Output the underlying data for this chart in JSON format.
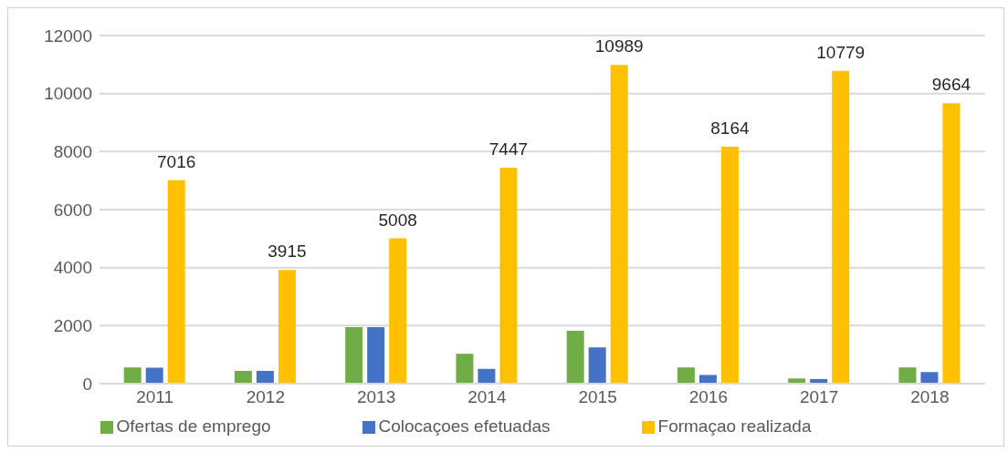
{
  "chart_data": {
    "type": "bar",
    "categories": [
      "2011",
      "2012",
      "2013",
      "2014",
      "2015",
      "2016",
      "2017",
      "2018"
    ],
    "series": [
      {
        "name": "Ofertas de emprego",
        "color": "#70ad47",
        "values": [
          560,
          440,
          1950,
          1030,
          1820,
          560,
          180,
          560
        ]
      },
      {
        "name": "Colocaçoes efetuadas",
        "color": "#4472c4",
        "values": [
          550,
          440,
          1950,
          510,
          1250,
          300,
          160,
          400
        ]
      },
      {
        "name": "Formaçao realizada",
        "color": "#ffc000",
        "values": [
          7016,
          3915,
          5008,
          7447,
          10989,
          8164,
          10779,
          9664
        ],
        "value_labels": [
          "7016",
          "3915",
          "5008",
          "7447",
          "10989",
          "8164",
          "10779",
          "9664"
        ]
      }
    ],
    "ylim": [
      0,
      12000
    ],
    "yticks": [
      0,
      2000,
      4000,
      6000,
      8000,
      10000,
      12000
    ],
    "grid": "y",
    "legend": "bottom"
  }
}
